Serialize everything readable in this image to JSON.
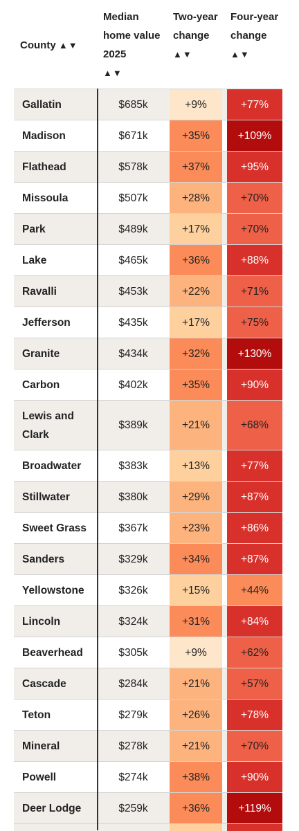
{
  "header": {
    "county": "County",
    "median": "Median home value 2025",
    "two": "Two-year change",
    "four": "Four-year change",
    "sort_arrows": "▲▼"
  },
  "chart_data": {
    "type": "table",
    "columns": [
      "County",
      "Median home value 2025",
      "Two-year change",
      "Four-year change"
    ],
    "rows": [
      {
        "county": "Gallatin",
        "median": "$685k",
        "two": "+9%",
        "two_v": 9,
        "four": "+77%",
        "four_v": 77
      },
      {
        "county": "Madison",
        "median": "$671k",
        "two": "+35%",
        "two_v": 35,
        "four": "+109%",
        "four_v": 109
      },
      {
        "county": "Flathead",
        "median": "$578k",
        "two": "+37%",
        "two_v": 37,
        "four": "+95%",
        "four_v": 95
      },
      {
        "county": "Missoula",
        "median": "$507k",
        "two": "+28%",
        "two_v": 28,
        "four": "+70%",
        "four_v": 70
      },
      {
        "county": "Park",
        "median": "$489k",
        "two": "+17%",
        "two_v": 17,
        "four": "+70%",
        "four_v": 70
      },
      {
        "county": "Lake",
        "median": "$465k",
        "two": "+36%",
        "two_v": 36,
        "four": "+88%",
        "four_v": 88
      },
      {
        "county": "Ravalli",
        "median": "$453k",
        "two": "+22%",
        "two_v": 22,
        "four": "+71%",
        "four_v": 71
      },
      {
        "county": "Jefferson",
        "median": "$435k",
        "two": "+17%",
        "two_v": 17,
        "four": "+75%",
        "four_v": 75
      },
      {
        "county": "Granite",
        "median": "$434k",
        "two": "+32%",
        "two_v": 32,
        "four": "+130%",
        "four_v": 130
      },
      {
        "county": "Carbon",
        "median": "$402k",
        "two": "+35%",
        "two_v": 35,
        "four": "+90%",
        "four_v": 90
      },
      {
        "county": "Lewis and Clark",
        "median": "$389k",
        "two": "+21%",
        "two_v": 21,
        "four": "+68%",
        "four_v": 68
      },
      {
        "county": "Broadwater",
        "median": "$383k",
        "two": "+13%",
        "two_v": 13,
        "four": "+77%",
        "four_v": 77
      },
      {
        "county": "Stillwater",
        "median": "$380k",
        "two": "+29%",
        "two_v": 29,
        "four": "+87%",
        "four_v": 87
      },
      {
        "county": "Sweet Grass",
        "median": "$367k",
        "two": "+23%",
        "two_v": 23,
        "four": "+86%",
        "four_v": 86
      },
      {
        "county": "Sanders",
        "median": "$329k",
        "two": "+34%",
        "two_v": 34,
        "four": "+87%",
        "four_v": 87
      },
      {
        "county": "Yellowstone",
        "median": "$326k",
        "two": "+15%",
        "two_v": 15,
        "four": "+44%",
        "four_v": 44
      },
      {
        "county": "Lincoln",
        "median": "$324k",
        "two": "+31%",
        "two_v": 31,
        "four": "+84%",
        "four_v": 84
      },
      {
        "county": "Beaverhead",
        "median": "$305k",
        "two": "+9%",
        "two_v": 9,
        "four": "+62%",
        "four_v": 62
      },
      {
        "county": "Cascade",
        "median": "$284k",
        "two": "+21%",
        "two_v": 21,
        "four": "+57%",
        "four_v": 57
      },
      {
        "county": "Teton",
        "median": "$279k",
        "two": "+26%",
        "two_v": 26,
        "four": "+78%",
        "four_v": 78
      },
      {
        "county": "Mineral",
        "median": "$278k",
        "two": "+21%",
        "two_v": 21,
        "four": "+70%",
        "four_v": 70
      },
      {
        "county": "Powell",
        "median": "$274k",
        "two": "+38%",
        "two_v": 38,
        "four": "+90%",
        "four_v": 90
      },
      {
        "county": "Deer Lodge",
        "median": "$259k",
        "two": "+36%",
        "two_v": 36,
        "four": "+119%",
        "four_v": 119
      }
    ]
  }
}
